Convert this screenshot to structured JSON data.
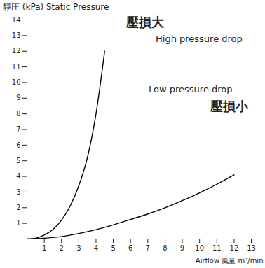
{
  "chart_data": {
    "type": "line",
    "x_label": "Airflow 風量 m³/min",
    "y_label": "靜圧 (kPa) Static Pressure",
    "xlim": [
      0,
      13
    ],
    "ylim": [
      0,
      14
    ],
    "xticks": [
      1,
      2,
      3,
      4,
      5,
      6,
      7,
      8,
      9,
      10,
      11,
      12,
      13
    ],
    "yticks": [
      1,
      2,
      3,
      4,
      5,
      6,
      7,
      8,
      9,
      10,
      11,
      12,
      13,
      14
    ],
    "grid": false,
    "series": [
      {
        "name": "High pressure drop",
        "label": "壓損大",
        "color": "#000000",
        "x": [
          0,
          0.5,
          1,
          1.5,
          2,
          2.5,
          3,
          3.5,
          4,
          4.5
        ],
        "values": [
          0,
          0.05,
          0.25,
          0.6,
          1.2,
          2.1,
          3.4,
          5.2,
          8,
          12
        ]
      },
      {
        "name": "Low pressure drop",
        "label": "壓損小",
        "color": "#000000",
        "x": [
          0,
          1,
          2,
          3,
          4,
          5,
          6,
          7,
          8,
          9,
          10,
          11,
          12
        ],
        "values": [
          0,
          0.05,
          0.15,
          0.35,
          0.6,
          0.9,
          1.25,
          1.6,
          2,
          2.45,
          2.95,
          3.5,
          4.1
        ]
      }
    ]
  }
}
